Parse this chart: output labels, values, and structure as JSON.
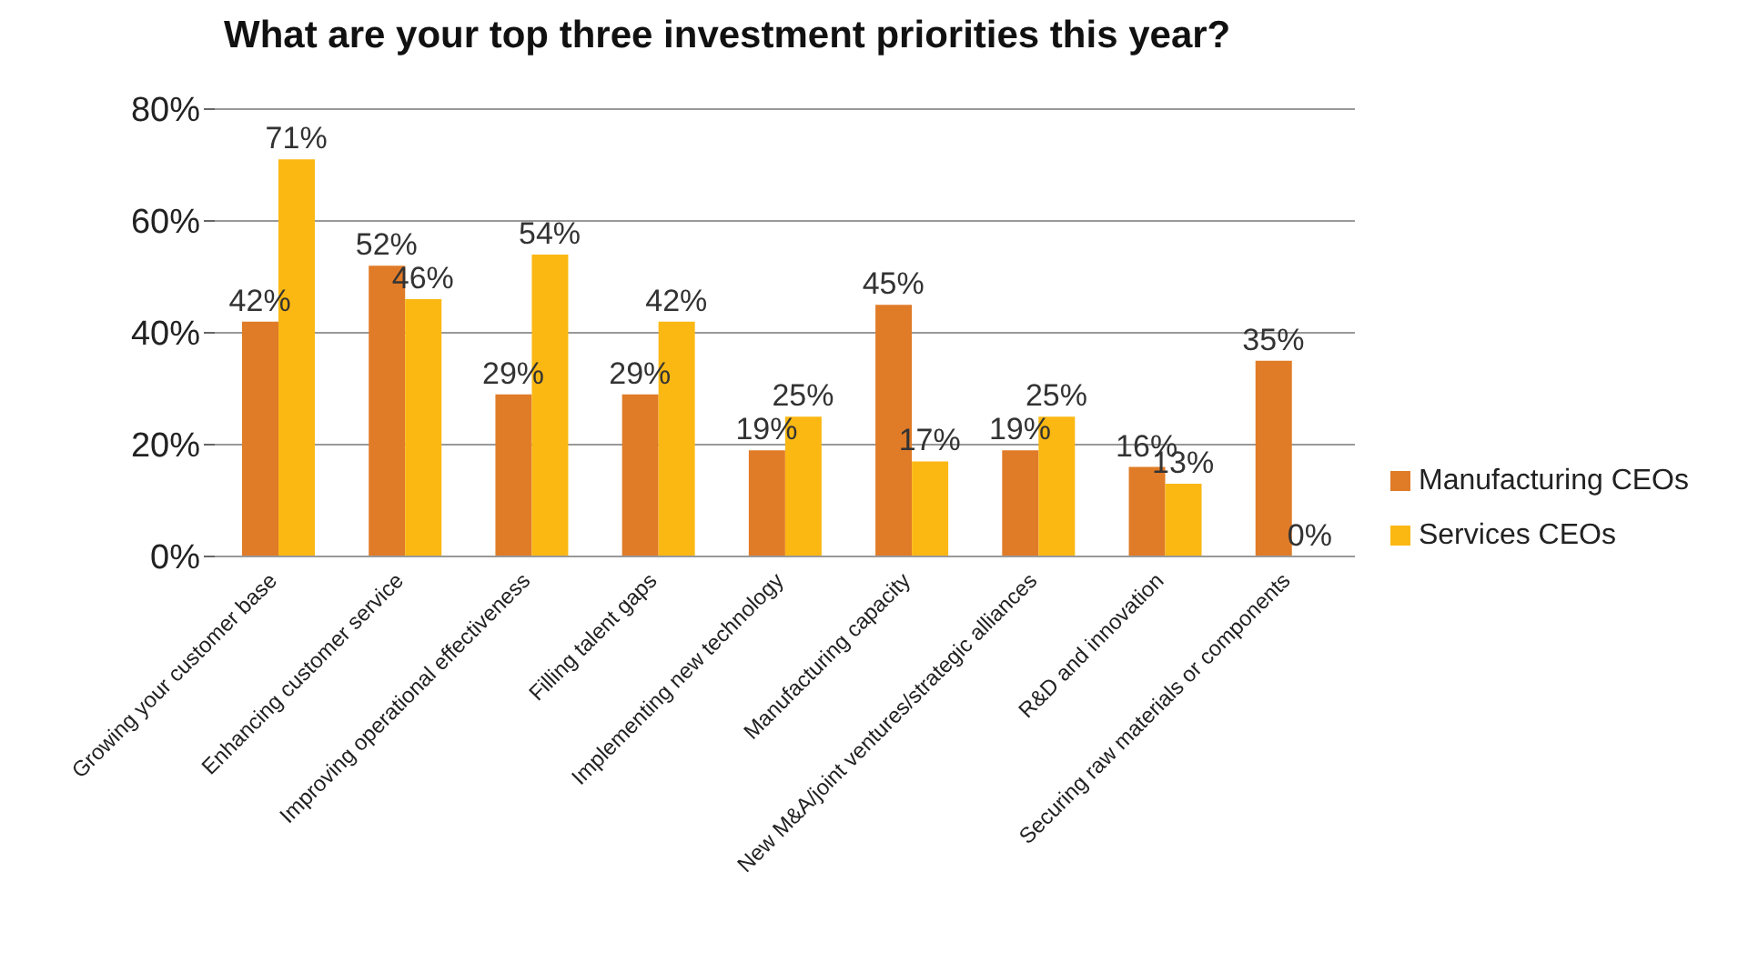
{
  "chart_data": {
    "type": "bar",
    "title": "What are your top three investment priorities this year?",
    "categories": [
      "Growing your customer base",
      "Enhancing customer service",
      "Improving operational effectiveness",
      "Filling talent gaps",
      "Implementing new technology",
      "Manufacturing capacity",
      "New M&A/joint ventures/strategic alliances",
      "R&D and innovation",
      "Securing raw materials or components"
    ],
    "series": [
      {
        "name": "Manufacturing CEOs",
        "color": "#e07b27",
        "values": [
          42,
          52,
          29,
          29,
          19,
          45,
          19,
          16,
          35
        ],
        "value_labels": [
          "42%",
          "52%",
          "29%",
          "29%",
          "19%",
          "45%",
          "19%",
          "16%",
          "35%"
        ]
      },
      {
        "name": "Services CEOs",
        "color": "#fbb813",
        "values": [
          71,
          46,
          54,
          42,
          25,
          17,
          25,
          13,
          0
        ],
        "value_labels": [
          "71%",
          "46%",
          "54%",
          "42%",
          "25%",
          "17%",
          "25%",
          "13%",
          "0%"
        ]
      }
    ],
    "ylim": [
      0,
      80
    ],
    "yticks": [
      {
        "value": 0,
        "label": "0%"
      },
      {
        "value": 20,
        "label": "20%"
      },
      {
        "value": 40,
        "label": "40%"
      },
      {
        "value": 60,
        "label": "60%"
      },
      {
        "value": 80,
        "label": "80%"
      }
    ],
    "grid": "y",
    "legend": "right"
  }
}
